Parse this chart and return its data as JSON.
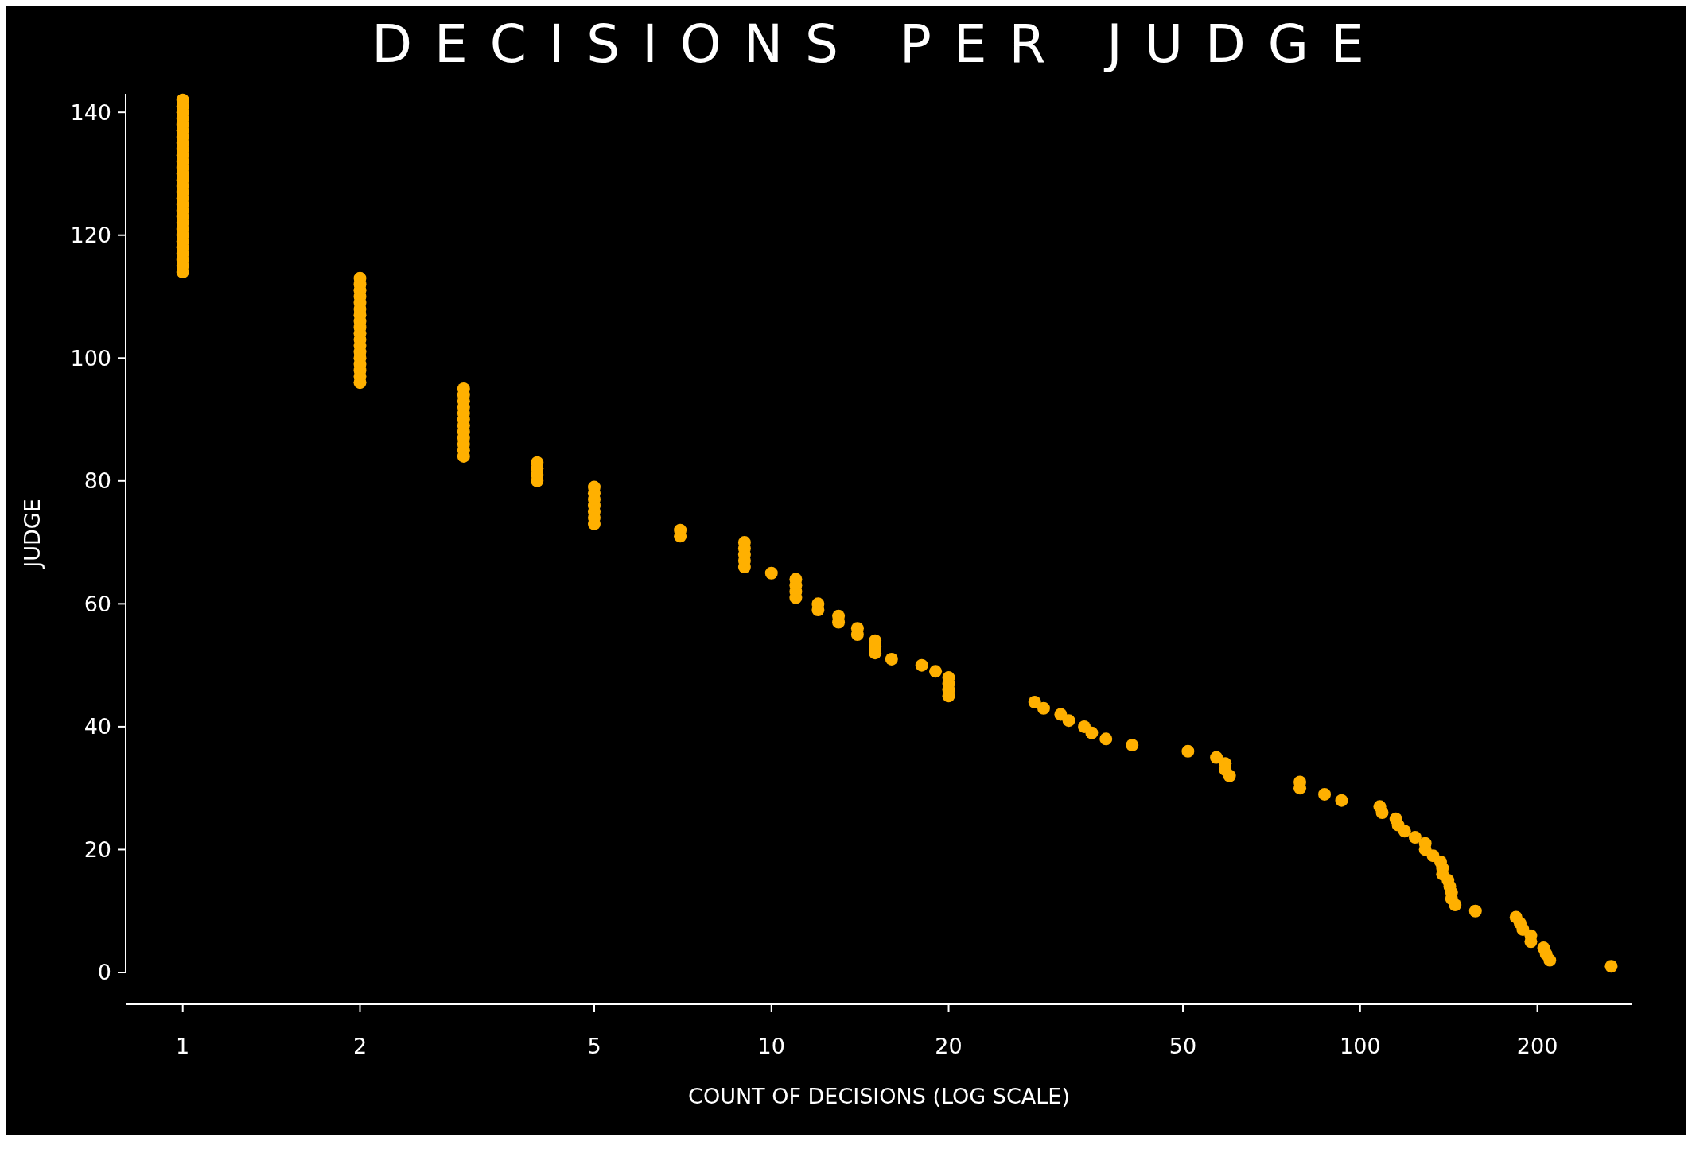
{
  "chart_data": {
    "type": "scatter",
    "title": "DECISIONS PER JUDGE",
    "xlabel": "COUNT OF DECISIONS (LOG SCALE)",
    "ylabel": "JUDGE",
    "log": "x",
    "marker": "circle",
    "grid": false,
    "series": [
      {
        "color": "#ffb000",
        "x": [
          267,
          210,
          207,
          205,
          195,
          195,
          189,
          187,
          184,
          157,
          145,
          143,
          143,
          142,
          141,
          138,
          138,
          137,
          133,
          129,
          129,
          124,
          119,
          116,
          115,
          109,
          108,
          93,
          87,
          79,
          79,
          60,
          59,
          59,
          57,
          51,
          41,
          37,
          35,
          34,
          32,
          31,
          29,
          28,
          20,
          20,
          20,
          20,
          19,
          18,
          16,
          15,
          15,
          15,
          14,
          14,
          13,
          13,
          12,
          12,
          11,
          11,
          11,
          11,
          10,
          9,
          9,
          9,
          9,
          9,
          7,
          7,
          5,
          5,
          5,
          5,
          5,
          5,
          5,
          4,
          4,
          4,
          4,
          3,
          3,
          3,
          3,
          3,
          3,
          3,
          3,
          3,
          3,
          3,
          3,
          2,
          2,
          2,
          2,
          2,
          2,
          2,
          2,
          2,
          2,
          2,
          2,
          2,
          2,
          2,
          2,
          2,
          2,
          1,
          1,
          1,
          1,
          1,
          1,
          1,
          1,
          1,
          1,
          1,
          1,
          1,
          1,
          1,
          1,
          1,
          1,
          1,
          1,
          1,
          1,
          1,
          1,
          1,
          1,
          1,
          1,
          1
        ],
        "values": [
          1,
          2,
          3,
          4,
          5,
          6,
          7,
          8,
          9,
          10,
          11,
          12,
          13,
          14,
          15,
          16,
          17,
          18,
          19,
          20,
          21,
          22,
          23,
          24,
          25,
          26,
          27,
          28,
          29,
          30,
          31,
          32,
          33,
          34,
          35,
          36,
          37,
          38,
          39,
          40,
          41,
          42,
          43,
          44,
          45,
          46,
          47,
          48,
          49,
          50,
          51,
          52,
          53,
          54,
          55,
          56,
          57,
          58,
          59,
          60,
          61,
          62,
          63,
          64,
          65,
          66,
          67,
          68,
          69,
          70,
          71,
          72,
          73,
          74,
          75,
          76,
          77,
          78,
          79,
          80,
          81,
          82,
          83,
          84,
          85,
          86,
          87,
          88,
          89,
          90,
          91,
          92,
          93,
          94,
          95,
          96,
          97,
          98,
          99,
          100,
          101,
          102,
          103,
          104,
          105,
          106,
          107,
          108,
          109,
          110,
          111,
          112,
          113,
          114,
          115,
          116,
          117,
          118,
          119,
          120,
          121,
          122,
          123,
          124,
          125,
          126,
          127,
          128,
          129,
          130,
          131,
          132,
          133,
          134,
          135,
          136,
          137,
          138,
          139,
          140,
          141,
          142
        ]
      }
    ],
    "xlim": [
      0.8,
      290
    ],
    "xticks": [
      1,
      2,
      5,
      10,
      20,
      50,
      100,
      200
    ],
    "ylim": [
      0,
      143
    ],
    "yticks": [
      0,
      20,
      40,
      60,
      80,
      100,
      120,
      140
    ]
  }
}
